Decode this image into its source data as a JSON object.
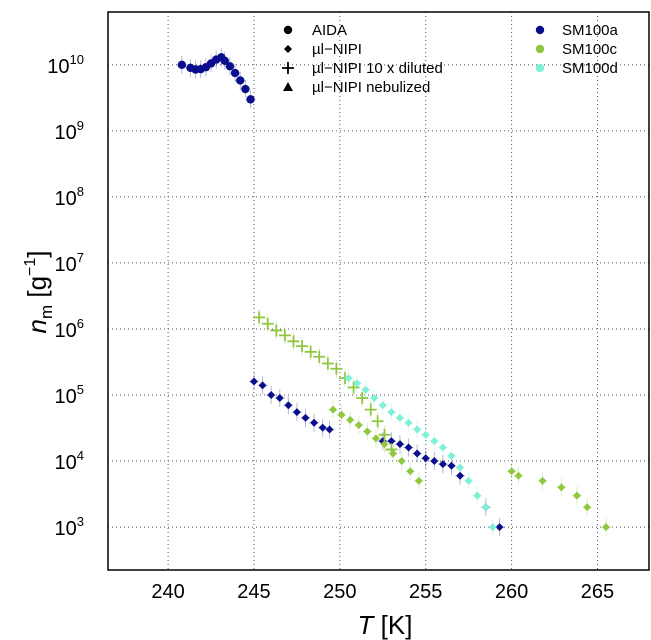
{
  "chart_data": {
    "type": "scatter",
    "title": "",
    "xlabel": {
      "var": "T",
      "unit": "[K]"
    },
    "ylabel": {
      "var": "n",
      "sub": "m",
      "unit_open": "[g",
      "unit_exp": "−1",
      "unit_close": "]"
    },
    "xlim": [
      236.5,
      268
    ],
    "ylim_log10": [
      2.35,
      10.8
    ],
    "y_scale": "log",
    "grid": "dotted",
    "x_ticks": [
      "240",
      "245",
      "250",
      "255",
      "260",
      "265"
    ],
    "y_ticks": [
      {
        "base": "10",
        "exp": "3"
      },
      {
        "base": "10",
        "exp": "4"
      },
      {
        "base": "10",
        "exp": "5"
      },
      {
        "base": "10",
        "exp": "6"
      },
      {
        "base": "10",
        "exp": "7"
      },
      {
        "base": "10",
        "exp": "8"
      },
      {
        "base": "10",
        "exp": "9"
      },
      {
        "base": "10",
        "exp": "10"
      }
    ],
    "legend_methods": [
      {
        "label": "AIDA",
        "marker": "circle"
      },
      {
        "label": "µl−NIPI",
        "marker": "diamond"
      },
      {
        "label": "µl−NIPI 10 x diluted",
        "marker": "plus"
      },
      {
        "label": "µl−NIPI nebulized",
        "marker": "triangle"
      }
    ],
    "legend_samples": [
      {
        "label": "SM100a",
        "color": "#0b0e8c"
      },
      {
        "label": "SM100c",
        "color": "#8fc73e"
      },
      {
        "label": "SM100d",
        "color": "#7ef0d8"
      }
    ],
    "series": [
      {
        "method": "AIDA",
        "sample": "SM100a",
        "marker": "circle",
        "x": [
          240.8,
          241.3,
          241.6,
          241.9,
          242.2,
          242.5,
          242.8,
          243.1,
          243.3,
          243.6,
          243.9,
          244.2,
          244.5,
          244.8
        ],
        "y": [
          10000000000.0,
          9000000000.0,
          8500000000.0,
          8600000000.0,
          9200000000.0,
          10500000000.0,
          12000000000.0,
          13000000000.0,
          11500000000.0,
          9500000000.0,
          7500000000.0,
          5800000000.0,
          4300000000.0,
          3000000000.0
        ]
      },
      {
        "method": "µl−NIPI",
        "sample": "SM100a",
        "marker": "diamond",
        "x": [
          245.0,
          245.5,
          246.0,
          246.5,
          247.0,
          247.5,
          248.0,
          248.5,
          249.0,
          249.4,
          252.5,
          253.0,
          253.5,
          254.0,
          254.5,
          255.0,
          255.5,
          256.0,
          256.5,
          257.0,
          258.5,
          259.3
        ],
        "y": [
          160000.0,
          140000.0,
          100000.0,
          90000.0,
          70000.0,
          55000.0,
          45000.0,
          38000.0,
          32000.0,
          30000.0,
          20000.0,
          20000.0,
          18000.0,
          16000.0,
          13000.0,
          11000.0,
          10000.0,
          9000.0,
          8500.0,
          6000.0,
          2000.0,
          1000.0
        ]
      },
      {
        "method": "µl−NIPI 10 x diluted",
        "sample": "SM100c",
        "marker": "plus",
        "x": [
          245.3,
          245.8,
          246.3,
          246.8,
          247.3,
          247.8,
          248.3,
          248.8,
          249.3,
          249.8,
          250.3,
          250.8,
          251.3,
          251.8,
          252.2,
          252.6,
          253.0
        ],
        "y": [
          1500000.0,
          1200000.0,
          950000.0,
          800000.0,
          650000.0,
          550000.0,
          450000.0,
          380000.0,
          300000.0,
          250000.0,
          180000.0,
          130000.0,
          90000.0,
          60000.0,
          40000.0,
          25000.0,
          15000.0
        ]
      },
      {
        "method": "µl−NIPI",
        "sample": "SM100c",
        "marker": "diamond",
        "x": [
          249.6,
          250.1,
          250.6,
          251.1,
          251.6,
          252.1,
          252.6,
          253.1,
          253.6,
          254.1,
          254.6,
          260.0,
          260.4,
          261.8,
          262.9,
          263.8,
          264.4,
          265.5
        ],
        "y": [
          60000.0,
          50000.0,
          42000.0,
          35000.0,
          28000.0,
          22000.0,
          18000.0,
          13000.0,
          10000.0,
          7000.0,
          5000.0,
          7000.0,
          6000.0,
          5000.0,
          4000.0,
          3000.0,
          2000.0,
          1000.0
        ]
      },
      {
        "method": "µl−NIPI",
        "sample": "SM100d",
        "marker": "diamond",
        "x": [
          250.5,
          251.0,
          251.5,
          252.0,
          252.5,
          253.0,
          253.5,
          254.0,
          254.5,
          255.0,
          255.5,
          256.0,
          256.5,
          257.0,
          257.5,
          258.0,
          258.5,
          258.9
        ],
        "y": [
          180000.0,
          150000.0,
          120000.0,
          90000.0,
          70000.0,
          55000.0,
          45000.0,
          38000.0,
          30000.0,
          25000.0,
          20000.0,
          16000.0,
          12000.0,
          8000.0,
          5000.0,
          3000.0,
          2000.0,
          1000.0
        ]
      }
    ]
  }
}
